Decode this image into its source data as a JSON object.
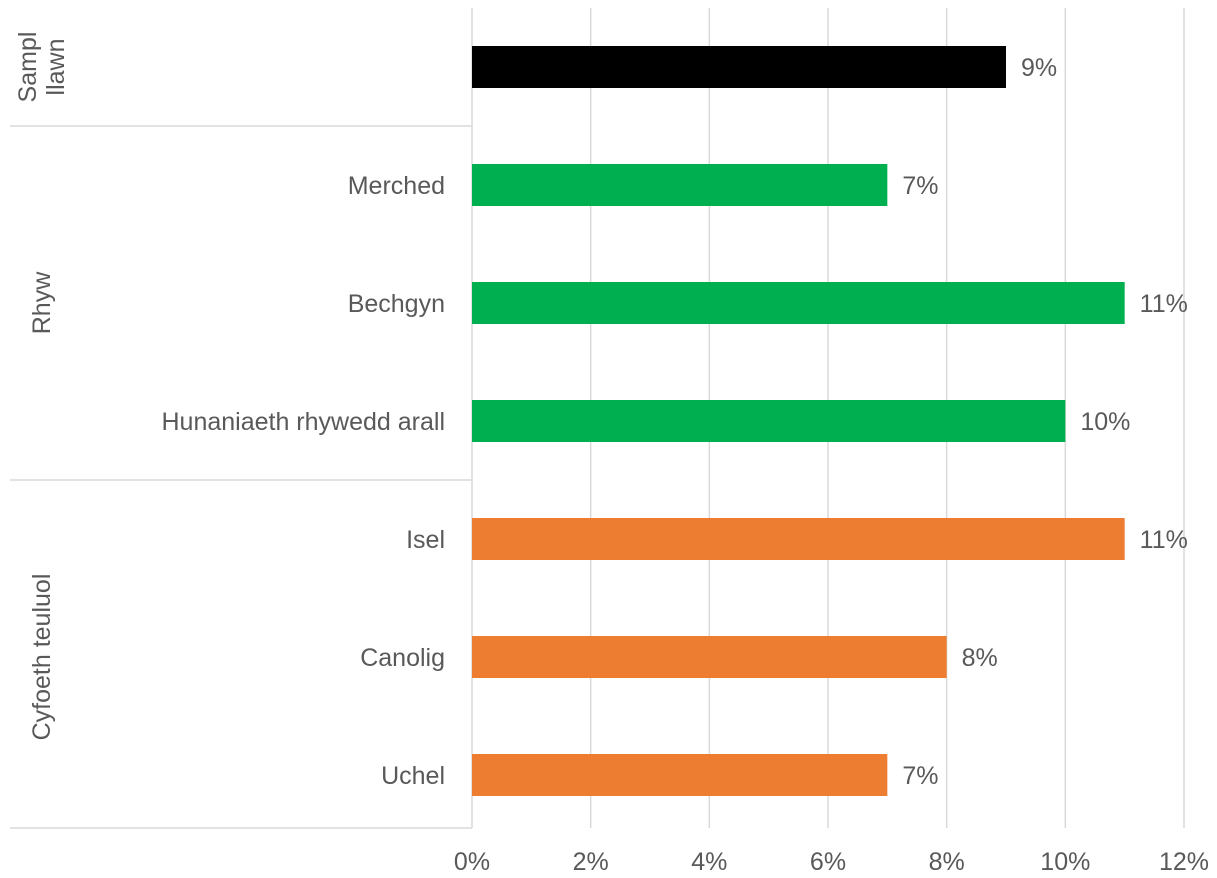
{
  "chart_data": {
    "type": "bar",
    "orientation": "horizontal",
    "xlim": [
      0,
      12
    ],
    "x_ticks": [
      0,
      2,
      4,
      6,
      8,
      10,
      12
    ],
    "x_tick_labels": [
      "0%",
      "2%",
      "4%",
      "6%",
      "8%",
      "10%",
      "12%"
    ],
    "grid": true,
    "groups": [
      {
        "name": "Sampl llawn",
        "name_lines": [
          "Sampl",
          "llawn"
        ],
        "color": "#000000",
        "items": [
          {
            "label": "",
            "value": 9,
            "value_label": "9%"
          }
        ]
      },
      {
        "name": "Rhyw",
        "name_lines": [
          "Rhyw"
        ],
        "color": "#00b050",
        "items": [
          {
            "label": "Merched",
            "value": 7,
            "value_label": "7%"
          },
          {
            "label": "Bechgyn",
            "value": 11,
            "value_label": "11%"
          },
          {
            "label": "Hunaniaeth rhywedd arall",
            "value": 10,
            "value_label": "10%"
          }
        ]
      },
      {
        "name": "Cyfoeth teuluol",
        "name_lines": [
          "Cyfoeth teuluol"
        ],
        "color": "#ed7d31",
        "items": [
          {
            "label": "Isel",
            "value": 11,
            "value_label": "11%"
          },
          {
            "label": "Canolig",
            "value": 8,
            "value_label": "8%"
          },
          {
            "label": "Uchel",
            "value": 7,
            "value_label": "7%"
          }
        ]
      }
    ]
  }
}
